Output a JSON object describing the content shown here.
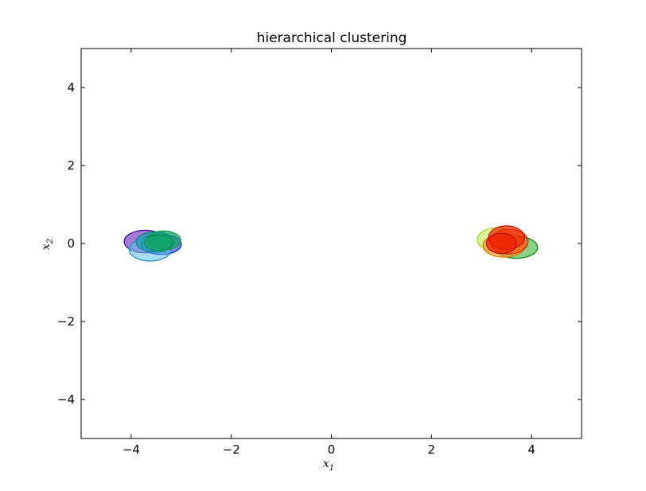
{
  "chart_data": {
    "type": "scatter",
    "title": "hierarchical clustering",
    "xlabel": {
      "base": "x",
      "sub": "1"
    },
    "ylabel": {
      "base": "x",
      "sub": "2"
    },
    "xlim": [
      -5,
      5
    ],
    "ylim": [
      -5,
      5
    ],
    "xticks": [
      -4,
      -2,
      0,
      2,
      4
    ],
    "yticks": [
      -4,
      -2,
      0,
      2,
      4
    ],
    "xtick_labels": [
      "−4",
      "−2",
      "0",
      "2",
      "4"
    ],
    "ytick_labels": [
      "−4",
      "−2",
      "0",
      "2",
      "4"
    ],
    "grid": false,
    "legend": false,
    "clusters": [
      {
        "ellipses": [
          {
            "cx": -3.72,
            "cy": 0.05,
            "rx": 0.42,
            "ry": 0.29,
            "fill": "#6b1fbf",
            "stroke": "#4b0f8f",
            "opacity": 0.6
          },
          {
            "cx": -3.4,
            "cy": -0.02,
            "rx": 0.4,
            "ry": 0.26,
            "fill": "#1f3fd6",
            "stroke": "#0a2ad0",
            "opacity": 0.6
          },
          {
            "cx": -3.62,
            "cy": -0.15,
            "rx": 0.42,
            "ry": 0.3,
            "fill": "#60c0ea",
            "stroke": "#2090d0",
            "opacity": 0.55
          },
          {
            "cx": -3.52,
            "cy": 0.04,
            "rx": 0.38,
            "ry": 0.26,
            "fill": "#12a0a8",
            "stroke": "#0e8f8f",
            "opacity": 0.65
          },
          {
            "cx": -3.35,
            "cy": 0.08,
            "rx": 0.34,
            "ry": 0.24,
            "fill": "#10a060",
            "stroke": "#0c9a4a",
            "opacity": 0.7
          },
          {
            "cx": -3.45,
            "cy": 0.02,
            "rx": 0.28,
            "ry": 0.2,
            "fill": "#13a66a",
            "stroke": "#0f8f55",
            "opacity": 0.7
          }
        ]
      },
      {
        "ellipses": [
          {
            "cx": 3.3,
            "cy": 0.1,
            "rx": 0.38,
            "ry": 0.3,
            "fill": "#c6ef5a",
            "stroke": "#9ed820",
            "opacity": 0.6
          },
          {
            "cx": 3.7,
            "cy": -0.1,
            "rx": 0.42,
            "ry": 0.28,
            "fill": "#3cb43c",
            "stroke": "#108a10",
            "opacity": 0.6
          },
          {
            "cx": 3.45,
            "cy": -0.05,
            "rx": 0.42,
            "ry": 0.3,
            "fill": "#ff9a20",
            "stroke": "#e07a00",
            "opacity": 0.65
          },
          {
            "cx": 3.55,
            "cy": 0.05,
            "rx": 0.38,
            "ry": 0.32,
            "fill": "#ff5010",
            "stroke": "#d03000",
            "opacity": 0.65
          },
          {
            "cx": 3.5,
            "cy": 0.15,
            "rx": 0.36,
            "ry": 0.3,
            "fill": "#f02800",
            "stroke": "#c01800",
            "opacity": 0.7
          },
          {
            "cx": 3.4,
            "cy": 0.0,
            "rx": 0.3,
            "ry": 0.26,
            "fill": "#ee2000",
            "stroke": "#b81000",
            "opacity": 0.7
          }
        ]
      }
    ]
  }
}
